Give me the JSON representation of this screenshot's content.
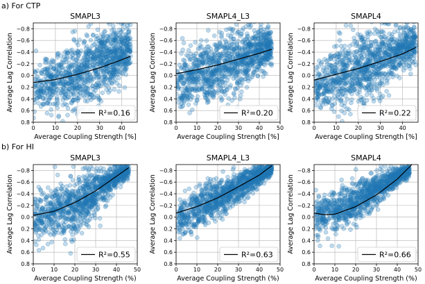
{
  "figure": {
    "rows": [
      {
        "label": "a) For CTP"
      },
      {
        "label": "b) For HI"
      }
    ]
  },
  "colors": {
    "scatter": "#1f77b4",
    "fit": "#000000",
    "axis": "#000000",
    "grid": "#b0b0b0"
  },
  "chart_data": [
    {
      "type": "scatter",
      "title": "SMAPL3",
      "xlabel": "Average Coupling Strength [%]",
      "ylabel": "Average Lag Correlation",
      "xlim": [
        0,
        47
      ],
      "ylim": [
        0.8,
        -0.9
      ],
      "y_inverted": true,
      "grid": true,
      "xticks": [
        0,
        10,
        20,
        30,
        40
      ],
      "yticks": [
        -0.8,
        -0.6,
        -0.4,
        -0.2,
        0.0,
        0.2,
        0.4,
        0.6,
        0.8
      ],
      "xtick_labels": [
        "0",
        "10",
        "20",
        "30",
        "40"
      ],
      "ytick_labels": [
        "−0.8",
        "−0.6",
        "−0.4",
        "−0.2",
        "0.0",
        "0.2",
        "0.4",
        "0.6",
        "0.8"
      ],
      "legend": {
        "label": "R²=0.16",
        "position": "lower-right"
      },
      "fit_curve": {
        "x": [
          0,
          10,
          20,
          30,
          40,
          44
        ],
        "y": [
          0.12,
          0.07,
          -0.02,
          -0.13,
          -0.27,
          -0.33
        ]
      },
      "point_cloud": {
        "center_x": [
          0,
          8,
          16,
          24,
          32,
          40,
          44
        ],
        "center_y": [
          0.25,
          0.1,
          0.0,
          -0.1,
          -0.25,
          -0.4,
          -0.45
        ],
        "spread_y": [
          0.35,
          0.5,
          0.6,
          0.6,
          0.55,
          0.45,
          0.4
        ]
      }
    },
    {
      "type": "scatter",
      "title": "SMAPL4_L3",
      "xlabel": "Average Coupling Strength [%]",
      "ylabel": "Average Lag Correlation",
      "xlim": [
        0,
        50
      ],
      "ylim": [
        0.8,
        -0.9
      ],
      "y_inverted": true,
      "grid": true,
      "xticks": [
        0,
        10,
        20,
        30,
        40,
        50
      ],
      "yticks": [
        -0.8,
        -0.6,
        -0.4,
        -0.2,
        0.0,
        0.2,
        0.4,
        0.6,
        0.8
      ],
      "xtick_labels": [
        "0",
        "10",
        "20",
        "30",
        "40",
        "50"
      ],
      "ytick_labels": [
        "−0.8",
        "−0.6",
        "−0.4",
        "−0.2",
        "0.0",
        "0.2",
        "0.4",
        "0.6",
        "0.8"
      ],
      "legend": {
        "label": "R²=0.20",
        "position": "lower-right"
      },
      "fit_curve": {
        "x": [
          0,
          10,
          20,
          30,
          40,
          46
        ],
        "y": [
          -0.03,
          -0.1,
          -0.18,
          -0.28,
          -0.38,
          -0.45
        ]
      },
      "point_cloud": {
        "center_x": [
          0,
          8,
          16,
          24,
          32,
          40,
          46
        ],
        "center_y": [
          0.2,
          0.0,
          -0.1,
          -0.2,
          -0.3,
          -0.45,
          -0.55
        ],
        "spread_y": [
          0.4,
          0.55,
          0.55,
          0.55,
          0.5,
          0.4,
          0.35
        ]
      }
    },
    {
      "type": "scatter",
      "title": "SMAPL4",
      "xlabel": "Average Coupling Strength [%]",
      "ylabel": "Average Lag Correlation",
      "xlim": [
        0,
        47
      ],
      "ylim": [
        0.8,
        -0.9
      ],
      "y_inverted": true,
      "grid": true,
      "xticks": [
        0,
        10,
        20,
        30,
        40
      ],
      "yticks": [
        -0.8,
        -0.6,
        -0.4,
        -0.2,
        0.0,
        0.2,
        0.4,
        0.6,
        0.8
      ],
      "xtick_labels": [
        "0",
        "10",
        "20",
        "30",
        "40"
      ],
      "ytick_labels": [
        "−0.8",
        "−0.6",
        "−0.4",
        "−0.2",
        "0.0",
        "0.2",
        "0.4",
        "0.6",
        "0.8"
      ],
      "legend": {
        "label": "R²=0.22",
        "position": "lower-right"
      },
      "fit_curve": {
        "x": [
          0,
          10,
          20,
          30,
          40,
          46
        ],
        "y": [
          0.08,
          -0.02,
          -0.12,
          -0.24,
          -0.37,
          -0.48
        ]
      },
      "point_cloud": {
        "center_x": [
          0,
          8,
          16,
          24,
          32,
          40,
          46
        ],
        "center_y": [
          0.25,
          0.05,
          -0.05,
          -0.15,
          -0.3,
          -0.45,
          -0.55
        ],
        "spread_y": [
          0.35,
          0.55,
          0.6,
          0.6,
          0.5,
          0.4,
          0.35
        ]
      }
    },
    {
      "type": "scatter",
      "title": "SMAPL3",
      "xlabel": "Average Coupling Strength (%)",
      "ylabel": "Average Lag Correlation",
      "xlim": [
        0,
        50
      ],
      "ylim": [
        0.8,
        -0.9
      ],
      "y_inverted": true,
      "grid": true,
      "xticks": [
        0,
        10,
        20,
        30,
        40,
        50
      ],
      "yticks": [
        -0.8,
        -0.6,
        -0.4,
        -0.2,
        0.0,
        0.2,
        0.4,
        0.6,
        0.8
      ],
      "xtick_labels": [
        "0",
        "10",
        "20",
        "30",
        "40",
        "50"
      ],
      "ytick_labels": [
        "−0.8",
        "−0.6",
        "−0.4",
        "−0.2",
        "0.0",
        "0.2",
        "0.4",
        "0.6",
        "0.8"
      ],
      "legend": {
        "label": "R²=0.55",
        "position": "lower-right"
      },
      "fit_curve": {
        "x": [
          0,
          10,
          20,
          30,
          40,
          46
        ],
        "y": [
          -0.03,
          -0.1,
          -0.25,
          -0.45,
          -0.7,
          -0.85
        ]
      },
      "point_cloud": {
        "center_x": [
          0,
          8,
          16,
          24,
          32,
          40,
          46
        ],
        "center_y": [
          0.05,
          -0.05,
          -0.15,
          -0.3,
          -0.5,
          -0.7,
          -0.8
        ],
        "spread_y": [
          0.45,
          0.5,
          0.5,
          0.45,
          0.35,
          0.2,
          0.12
        ]
      }
    },
    {
      "type": "scatter",
      "title": "SMAPL4_L3",
      "xlabel": "Average Coupling Strength (%)",
      "ylabel": "Average Lag Correlation",
      "xlim": [
        0,
        50
      ],
      "ylim": [
        0.8,
        -0.9
      ],
      "y_inverted": true,
      "grid": true,
      "xticks": [
        0,
        10,
        20,
        30,
        40,
        50
      ],
      "yticks": [
        -0.8,
        -0.6,
        -0.4,
        -0.2,
        0.0,
        0.2,
        0.4,
        0.6,
        0.8
      ],
      "xtick_labels": [
        "0",
        "10",
        "20",
        "30",
        "40",
        "50"
      ],
      "ytick_labels": [
        "−0.8",
        "−0.6",
        "−0.4",
        "−0.2",
        "0.0",
        "0.2",
        "0.4",
        "0.6",
        "0.8"
      ],
      "legend": {
        "label": "R²=0.63",
        "position": "lower-right"
      },
      "fit_curve": {
        "x": [
          0,
          10,
          20,
          30,
          40,
          46
        ],
        "y": [
          -0.07,
          -0.18,
          -0.33,
          -0.52,
          -0.72,
          -0.88
        ]
      },
      "point_cloud": {
        "center_x": [
          0,
          8,
          16,
          24,
          32,
          40,
          46
        ],
        "center_y": [
          0.05,
          -0.1,
          -0.25,
          -0.4,
          -0.55,
          -0.72,
          -0.82
        ],
        "spread_y": [
          0.3,
          0.35,
          0.35,
          0.3,
          0.25,
          0.15,
          0.1
        ]
      }
    },
    {
      "type": "scatter",
      "title": "SMAPL4",
      "xlabel": "Average Coupling Strength (%)",
      "ylabel": "Average Lag Correlation",
      "xlim": [
        0,
        50
      ],
      "ylim": [
        0.8,
        -0.9
      ],
      "y_inverted": true,
      "grid": true,
      "xticks": [
        0,
        10,
        20,
        30,
        40,
        50
      ],
      "yticks": [
        -0.8,
        -0.6,
        -0.4,
        -0.2,
        0.0,
        0.2,
        0.4,
        0.6,
        0.8
      ],
      "xtick_labels": [
        "0",
        "10",
        "20",
        "30",
        "40",
        "50"
      ],
      "ytick_labels": [
        "−0.8",
        "−0.6",
        "−0.4",
        "−0.2",
        "0.0",
        "0.2",
        "0.4",
        "0.6",
        "0.8"
      ],
      "legend": {
        "label": "R²=0.66",
        "position": "lower-right"
      },
      "fit_curve": {
        "x": [
          0,
          5,
          10,
          20,
          30,
          40,
          47
        ],
        "y": [
          -0.07,
          -0.04,
          -0.05,
          -0.18,
          -0.38,
          -0.65,
          -0.9
        ]
      },
      "point_cloud": {
        "center_x": [
          0,
          8,
          16,
          24,
          32,
          40,
          46
        ],
        "center_y": [
          0.0,
          -0.08,
          -0.18,
          -0.35,
          -0.52,
          -0.7,
          -0.8
        ],
        "spread_y": [
          0.35,
          0.35,
          0.35,
          0.3,
          0.25,
          0.15,
          0.1
        ]
      }
    }
  ]
}
